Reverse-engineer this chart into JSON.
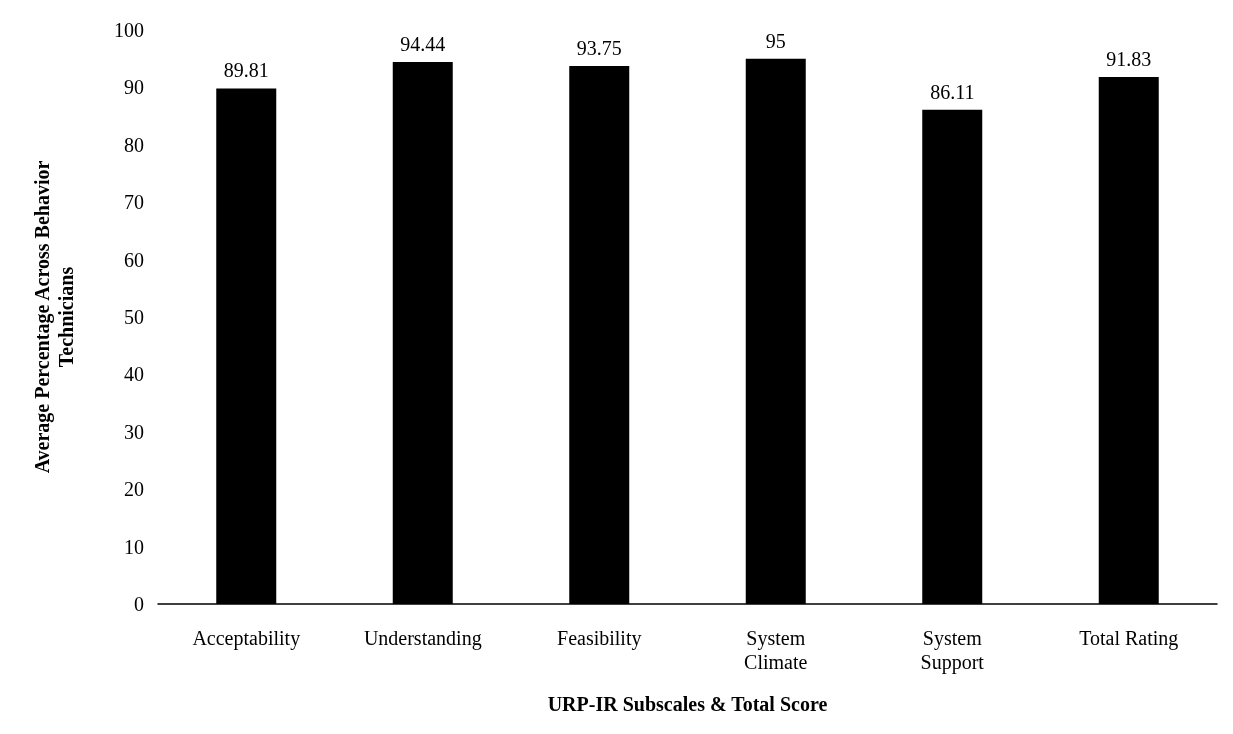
{
  "chart_data": {
    "type": "bar",
    "xlabel": "URP-IR Subscales & Total Score",
    "ylabel": "Average Percentage Across Behavior Technicians",
    "categories": [
      "Acceptability",
      "Understanding",
      "Feasibility",
      "System Climate",
      "System Support",
      "Total Rating"
    ],
    "values": [
      89.81,
      94.44,
      93.75,
      95,
      86.11,
      91.83
    ],
    "color": "#000000",
    "data_labels": true,
    "ylim": [
      0,
      100
    ],
    "yticks": [
      0,
      10,
      20,
      30,
      40,
      50,
      60,
      70,
      80,
      90,
      100
    ],
    "grid": false
  }
}
